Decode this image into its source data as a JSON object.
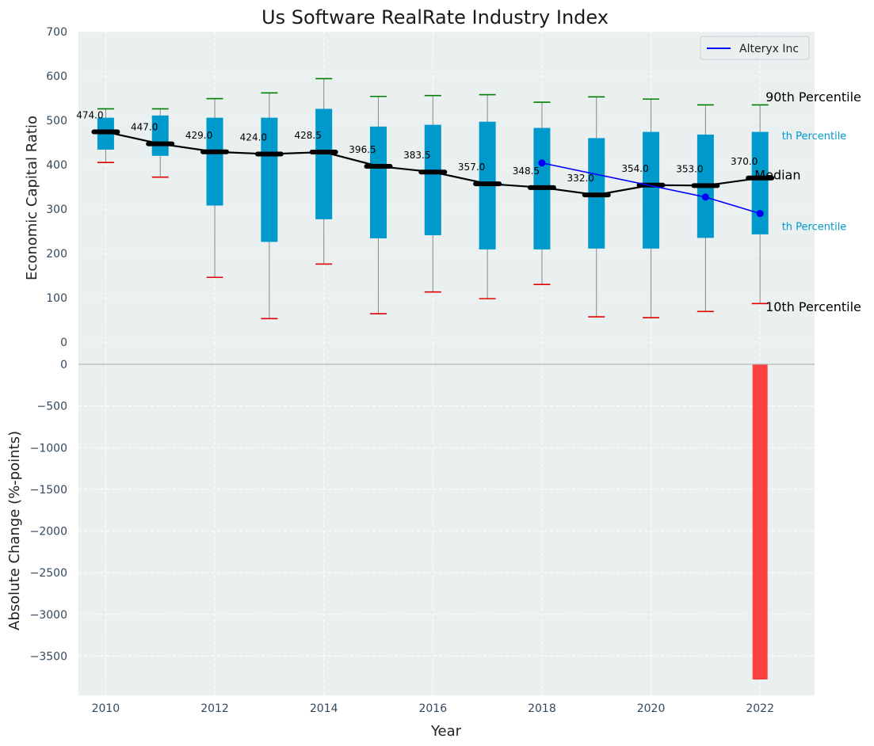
{
  "chart_data": [
    {
      "type": "box",
      "title": "Us Software RealRate Industry Index",
      "xlabel": "",
      "ylabel": "Economic Capital Ratio",
      "ylim": [
        -50,
        700
      ],
      "yticks": [
        0,
        100,
        200,
        300,
        400,
        500,
        600,
        700
      ],
      "grid": true,
      "legend": {
        "placement": "top-right",
        "entries": [
          "Alteryx Inc"
        ]
      },
      "x": [
        2010,
        2011,
        2012,
        2013,
        2014,
        2015,
        2016,
        2017,
        2018,
        2019,
        2020,
        2021,
        2022
      ],
      "p10": [
        405,
        372,
        146,
        53,
        176,
        64,
        113,
        98,
        130,
        57,
        55,
        69,
        87
      ],
      "p25": [
        434,
        420,
        308,
        226,
        277,
        234,
        241,
        209,
        209,
        211,
        211,
        235,
        243
      ],
      "median": [
        474.0,
        447.0,
        429.0,
        424.0,
        428.5,
        396.5,
        383.5,
        357.0,
        348.5,
        332.0,
        354.0,
        353.0,
        370.0
      ],
      "p75": [
        506,
        511,
        506,
        506,
        526,
        486,
        490,
        497,
        483,
        460,
        474,
        468,
        474
      ],
      "p90": [
        526,
        526,
        549,
        562,
        594,
        554,
        556,
        558,
        541,
        553,
        548,
        535,
        535
      ],
      "median_labels": [
        "474.0",
        "447.0",
        "429.0",
        "424.0",
        "428.5",
        "396.5",
        "383.5",
        "357.0",
        "348.5",
        "332.0",
        "354.0",
        "353.0",
        "370.0"
      ],
      "series": [
        {
          "name": "Alteryx Inc",
          "x": [
            2018,
            2021,
            2022
          ],
          "values": [
            404,
            327,
            290
          ],
          "color": "#0000ff"
        }
      ],
      "annotations": [
        {
          "text": "90th Percentile",
          "x": 2022.1,
          "y": 543
        },
        {
          "text": "th Percentile",
          "x": 2022.4,
          "y": 457
        },
        {
          "text": "Median",
          "x": 2021.9,
          "y": 367
        },
        {
          "text": "th Percentile",
          "x": 2022.4,
          "y": 253
        },
        {
          "text": "10th Percentile",
          "x": 2022.1,
          "y": 70
        }
      ],
      "colors": {
        "box": "#0099cc",
        "median": "#000000",
        "p90_cap": "#008000",
        "p10_cap": "#e00000",
        "background": "#eaeff0"
      }
    },
    {
      "type": "bar",
      "xlabel": "Year",
      "ylabel": "Absolute Change (%-points)",
      "xlim": [
        2009.5,
        2023
      ],
      "xticks": [
        2010,
        2012,
        2014,
        2016,
        2018,
        2020,
        2022
      ],
      "ylim": [
        -3970,
        0
      ],
      "yticks": [
        0,
        -500,
        -1000,
        -1500,
        -2000,
        -2500,
        -3000,
        -3500
      ],
      "ytick_labels": [
        "0",
        "−500",
        "−1000",
        "−1500",
        "−2000",
        "−2500",
        "−3000",
        "−3500"
      ],
      "grid": true,
      "x": [
        2022
      ],
      "values": [
        -3780
      ],
      "colors": {
        "bar": "#ff4040"
      }
    }
  ]
}
